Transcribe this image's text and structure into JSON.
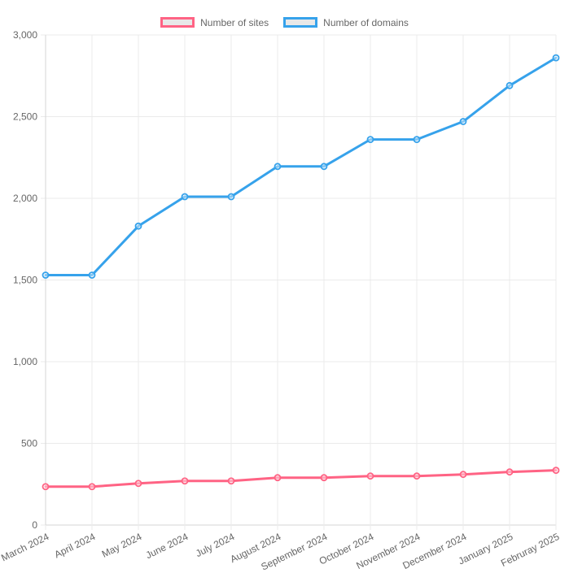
{
  "legend": {
    "position": "top",
    "items": [
      {
        "label": "Number of sites",
        "color": "#FF6384",
        "fill": "#E8E8E8"
      },
      {
        "label": "Number of domains",
        "color": "#36A2EB",
        "fill": "#E8E8E8"
      }
    ]
  },
  "chart_data": {
    "type": "line",
    "title": "",
    "xlabel": "",
    "ylabel": "",
    "categories": [
      "March 2024",
      "April 2024",
      "May 2024",
      "June 2024",
      "July 2024",
      "August 2024",
      "September 2024",
      "October 2024",
      "November 2024",
      "December 2024",
      "January 2025",
      "Februray 2025"
    ],
    "series": [
      {
        "name": "Number of sites",
        "color": "#FF6384",
        "values": [
          235,
          235,
          255,
          270,
          270,
          290,
          290,
          300,
          300,
          310,
          325,
          335
        ]
      },
      {
        "name": "Number of domains",
        "color": "#36A2EB",
        "values": [
          1530,
          1530,
          1830,
          2010,
          2010,
          2195,
          2195,
          2360,
          2360,
          2470,
          2690,
          2860
        ]
      }
    ],
    "ylim": [
      0,
      3000
    ],
    "y_ticks": [
      0,
      500,
      1000,
      1500,
      2000,
      2500,
      3000
    ],
    "y_tick_labels": [
      "0",
      "500",
      "1,000",
      "1,500",
      "2,000",
      "2,500",
      "3,000"
    ],
    "grid": true,
    "legend_position": "top",
    "style": {
      "grid_color": "#ebebeb",
      "axis_color": "#d6d6d6",
      "tick_text_color": "#666666",
      "point_fill": "rgba(255,255,255,0.4)",
      "x_label_angle": -26
    }
  }
}
